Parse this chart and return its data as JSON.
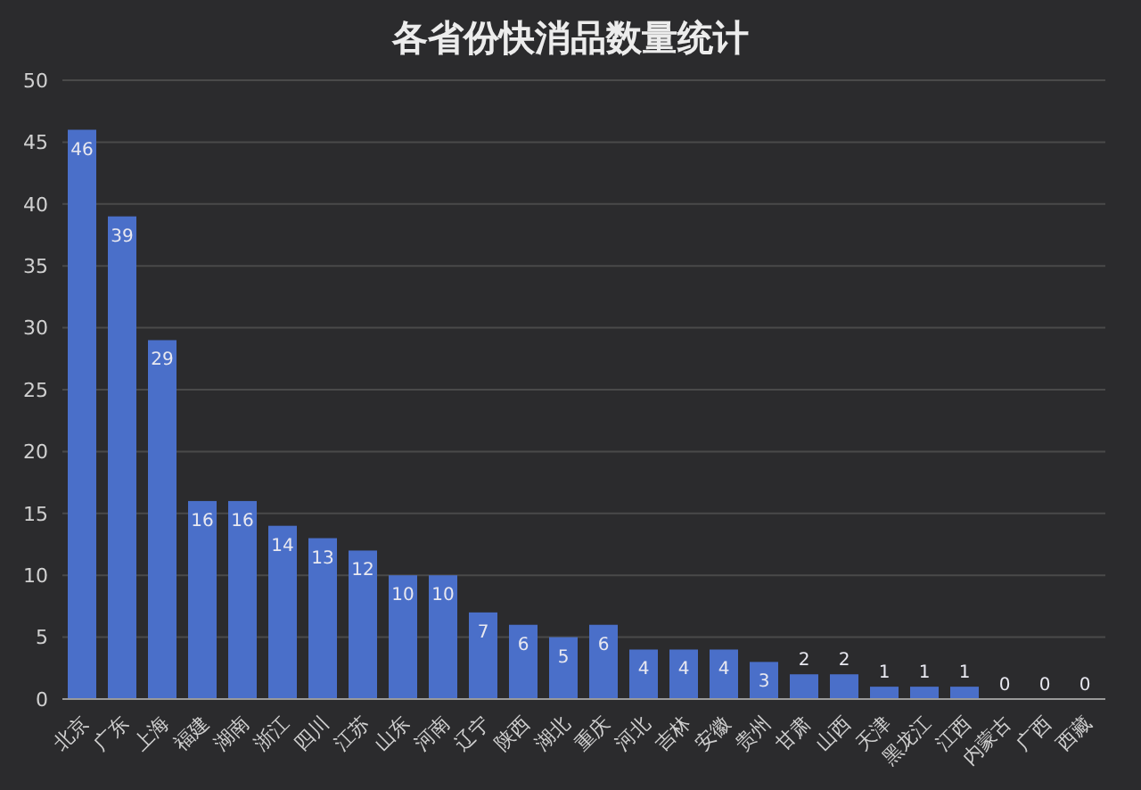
{
  "chart_data": {
    "type": "bar",
    "title": "各省份快消品数量统计",
    "categories": [
      "北京",
      "广东",
      "上海",
      "福建",
      "湖南",
      "浙江",
      "四川",
      "江苏",
      "山东",
      "河南",
      "辽宁",
      "陕西",
      "湖北",
      "重庆",
      "河北",
      "吉林",
      "安徽",
      "贵州",
      "甘肃",
      "山西",
      "天津",
      "黑龙江",
      "江西",
      "内蒙古",
      "广西",
      "西藏"
    ],
    "values": [
      46,
      39,
      29,
      16,
      16,
      14,
      13,
      12,
      10,
      10,
      7,
      6,
      5,
      6,
      4,
      4,
      4,
      3,
      2,
      2,
      1,
      1,
      1,
      0,
      0,
      0
    ],
    "color": "#4a6fc9",
    "ylim": [
      0,
      50
    ],
    "yticks": [
      0,
      5,
      10,
      15,
      20,
      25,
      30,
      35,
      40,
      45,
      50
    ],
    "grid": "y",
    "data_labels": true
  }
}
